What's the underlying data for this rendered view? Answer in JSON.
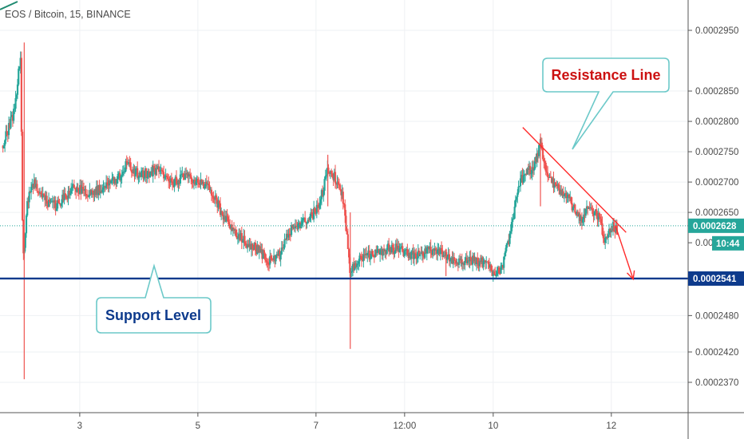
{
  "chart_data": {
    "type": "candlestick",
    "title": "EOS / Bitcoin, 15, BINANCE",
    "ylim": [
      0.000232,
      0.0003
    ],
    "x_tick_labels": [
      {
        "label": "3",
        "x": 2
      },
      {
        "label": "5",
        "x": 4
      },
      {
        "label": "7",
        "x": 6
      },
      {
        "label": "12:00",
        "x": 7.5
      },
      {
        "label": "10",
        "x": 9
      },
      {
        "label": "12",
        "x": 11
      }
    ],
    "xlim": [
      0.65,
      12.3
    ],
    "y_tick_labels": [
      "0.0002950",
      "0.0002850",
      "0.0002800",
      "0.0002750",
      "0.0002700",
      "0.0002650",
      "0.0002480",
      "0.0002420",
      "0.0002370"
    ],
    "y_tick_values": [
      0.000295,
      0.000285,
      0.00028,
      0.000275,
      0.00027,
      0.000265,
      0.000248,
      0.000242,
      0.000237
    ],
    "partial_tick": {
      "label": "0.00",
      "value": 0.00026
    },
    "last_price": {
      "label": "0.0002628",
      "value": 0.0002628,
      "color": "#26a69a"
    },
    "countdown": "10:44",
    "support": {
      "label": "0.0002541",
      "value": 0.0002541,
      "color": "#0d3a8c"
    },
    "resistance_line": {
      "start": [
        9.5,
        0.000279
      ],
      "end": [
        11.25,
        0.0002617
      ],
      "color": "#ff2a2a"
    },
    "projection_arrow": {
      "start": [
        11.07,
        0.0002628
      ],
      "end": [
        11.37,
        0.000254
      ],
      "color": "#ff2a2a"
    },
    "up_color": "#26a69a",
    "down_color": "#ef5350",
    "key_prices": [
      [
        0.7,
        0.000276
      ],
      [
        0.8,
        0.000279
      ],
      [
        0.9,
        0.000282
      ],
      [
        0.95,
        0.000287
      ],
      [
        1.0,
        0.000291
      ],
      [
        1.03,
        0.000264
      ],
      [
        1.05,
        0.000256
      ],
      [
        1.1,
        0.000266
      ],
      [
        1.2,
        0.00027
      ],
      [
        1.4,
        0.000267
      ],
      [
        1.6,
        0.000266
      ],
      [
        1.9,
        0.000269
      ],
      [
        2.2,
        0.000268
      ],
      [
        2.5,
        0.00027
      ],
      [
        2.7,
        0.000271
      ],
      [
        2.8,
        0.000273
      ],
      [
        3.0,
        0.000271
      ],
      [
        3.3,
        0.000272
      ],
      [
        3.6,
        0.00027
      ],
      [
        3.8,
        0.000271
      ],
      [
        4.0,
        0.00027
      ],
      [
        4.2,
        0.000269
      ],
      [
        4.4,
        0.000265
      ],
      [
        4.6,
        0.000262
      ],
      [
        4.8,
        0.00026
      ],
      [
        5.0,
        0.000259
      ],
      [
        5.2,
        0.000257
      ],
      [
        5.4,
        0.000258
      ],
      [
        5.55,
        0.000262
      ],
      [
        5.7,
        0.000263
      ],
      [
        5.9,
        0.000264
      ],
      [
        6.05,
        0.000266
      ],
      [
        6.2,
        0.000272
      ],
      [
        6.3,
        0.000271
      ],
      [
        6.45,
        0.000268
      ],
      [
        6.58,
        0.000255
      ],
      [
        6.65,
        0.000256
      ],
      [
        6.8,
        0.000258
      ],
      [
        7.0,
        0.000258
      ],
      [
        7.2,
        0.000259
      ],
      [
        7.4,
        0.000259
      ],
      [
        7.6,
        0.000258
      ],
      [
        7.8,
        0.000258
      ],
      [
        8.0,
        0.000259
      ],
      [
        8.2,
        0.000258
      ],
      [
        8.4,
        0.000257
      ],
      [
        8.6,
        0.000257
      ],
      [
        8.8,
        0.000257
      ],
      [
        9.0,
        0.000255
      ],
      [
        9.15,
        0.000256
      ],
      [
        9.25,
        0.00026
      ],
      [
        9.35,
        0.000265
      ],
      [
        9.45,
        0.00027
      ],
      [
        9.55,
        0.000271
      ],
      [
        9.7,
        0.000273
      ],
      [
        9.8,
        0.000276
      ],
      [
        9.9,
        0.000272
      ],
      [
        10.0,
        0.00027
      ],
      [
        10.2,
        0.000268
      ],
      [
        10.35,
        0.000266
      ],
      [
        10.5,
        0.000264
      ],
      [
        10.65,
        0.000266
      ],
      [
        10.8,
        0.000264
      ],
      [
        10.9,
        0.00026
      ],
      [
        11.0,
        0.000263
      ],
      [
        11.1,
        0.000262
      ]
    ],
    "spikes": [
      {
        "x": 1.06,
        "low": 0.0002375,
        "high": 0.000293
      },
      {
        "x": 6.58,
        "low": 0.0002425,
        "high": 0.000265
      },
      {
        "x": 6.2,
        "low": 0.000266,
        "high": 0.0002745
      },
      {
        "x": 9.8,
        "low": 0.000266,
        "high": 0.000278
      },
      {
        "x": 8.2,
        "low": 0.0002545,
        "high": 0.000259
      }
    ]
  },
  "annotations": {
    "resistance": {
      "text": "Resistance Line",
      "color": "#cc1111"
    },
    "support": {
      "text": "Support Level",
      "color": "#0d3a8c"
    }
  }
}
